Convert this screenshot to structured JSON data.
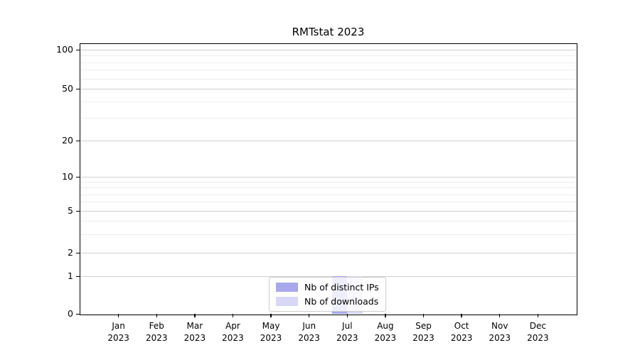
{
  "title": "RMTstat 2023",
  "legend": {
    "items": [
      {
        "label": "Nb of distinct IPs",
        "color": "#a8a8ea"
      },
      {
        "label": "Nb of downloads",
        "color": "#d8d8f6"
      }
    ]
  },
  "chart_data": {
    "type": "bar",
    "title": "RMTstat 2023",
    "categories": [
      "Jan 2023",
      "Feb 2023",
      "Mar 2023",
      "Apr 2023",
      "May 2023",
      "Jun 2023",
      "Jul 2023",
      "Aug 2023",
      "Sep 2023",
      "Oct 2023",
      "Nov 2023",
      "Dec 2023"
    ],
    "series": [
      {
        "name": "Nb of distinct IPs",
        "color": "#a8a8ea",
        "values": [
          0,
          0,
          0,
          0,
          0,
          0,
          1,
          0,
          0,
          0,
          0,
          0
        ]
      },
      {
        "name": "Nb of downloads",
        "color": "#d8d8f6",
        "values": [
          0,
          0,
          0,
          0,
          0,
          0,
          1,
          0,
          0,
          0,
          0,
          0
        ]
      }
    ],
    "xlabel": "",
    "ylabel": "",
    "yscale": "symlog",
    "ylim": [
      0,
      112
    ],
    "yticks_major": [
      0,
      1,
      2,
      5,
      10,
      20,
      50,
      100
    ],
    "yticks_minor": [
      3,
      4,
      6,
      7,
      8,
      9,
      30,
      40,
      60,
      70,
      80,
      90
    ],
    "grid": "y-only",
    "legend_position": "lower center",
    "colors": {
      "grid_major": "#cfcfcf",
      "grid_minor": "#ededed",
      "axis": "#000000",
      "background": "#ffffff"
    }
  }
}
